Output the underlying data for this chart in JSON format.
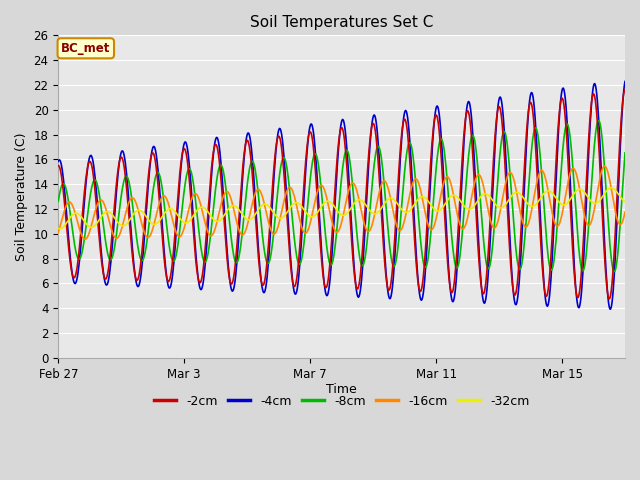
{
  "title": "Soil Temperatures Set C",
  "xlabel": "Time",
  "ylabel": "Soil Temperature (C)",
  "ylim": [
    0,
    26
  ],
  "yticks": [
    0,
    2,
    4,
    6,
    8,
    10,
    12,
    14,
    16,
    18,
    20,
    22,
    24,
    26
  ],
  "xtick_labels": [
    "Feb 27",
    "Mar 3",
    "Mar 7",
    "Mar 11",
    "Mar 15"
  ],
  "xtick_positions": [
    0,
    4,
    8,
    12,
    16
  ],
  "colors": {
    "-2cm": "#cc0000",
    "-4cm": "#0000cc",
    "-8cm": "#00bb00",
    "-16cm": "#ff8800",
    "-32cm": "#eeee00"
  },
  "annotation_text": "BC_met",
  "annotation_color": "#8B0000",
  "annotation_bg": "#ffffcc",
  "annotation_border": "#cc8800",
  "fig_bg_color": "#d8d8d8",
  "plot_bg_color": "#e8e8e8",
  "grid_color": "#ffffff",
  "linewidth": 1.2,
  "num_days": 18,
  "points_per_day": 48
}
